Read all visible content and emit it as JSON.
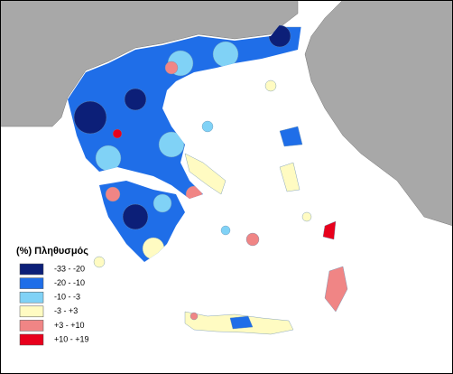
{
  "legend": {
    "title": "(%) Πληθυσμός",
    "items": [
      {
        "label": "-33 - -20",
        "color": "#0c1f78"
      },
      {
        "label": "-20 - -10",
        "color": "#1f6ee8"
      },
      {
        "label": "-10 - -3",
        "color": "#80d2f6"
      },
      {
        "label": "-3 - +3",
        "color": "#fffbc2"
      },
      {
        "label": "+3 - +10",
        "color": "#f08585"
      },
      {
        "label": "+10 - +19",
        "color": "#e8001c"
      }
    ]
  }
}
